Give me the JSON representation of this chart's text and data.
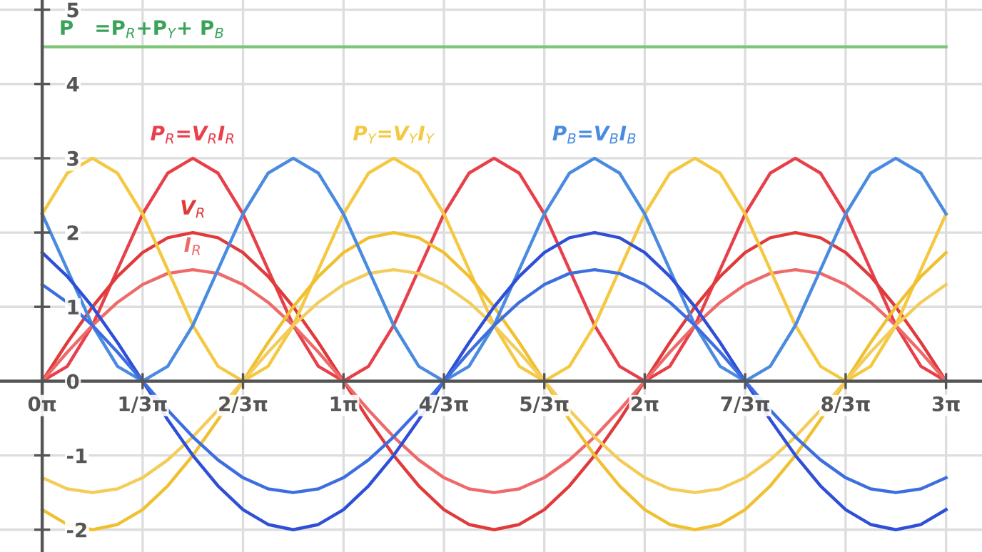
{
  "chart_data": {
    "type": "line",
    "x": [
      0,
      0.262,
      0.524,
      0.785,
      1.047,
      1.309,
      1.571,
      1.833,
      2.094,
      2.356,
      2.618,
      2.88,
      3.142,
      3.403,
      3.665,
      3.927,
      4.189,
      4.451,
      4.712,
      4.974,
      5.236,
      5.498,
      5.76,
      6.021,
      6.283,
      6.545,
      6.807,
      7.069,
      7.33,
      7.592,
      7.854,
      8.116,
      8.378,
      8.639,
      8.901,
      9.163,
      9.425
    ],
    "series": [
      {
        "name": "P$_{R}$=V$_{R}$I$_{R}$",
        "color": "#e8404a",
        "values": [
          0,
          0.2,
          0.75,
          1.5,
          2.25,
          2.8,
          3,
          2.8,
          2.25,
          1.5,
          0.75,
          0.2,
          0,
          0.2,
          0.75,
          1.5,
          2.25,
          2.8,
          3,
          2.8,
          2.25,
          1.5,
          0.75,
          0.2,
          0,
          0.2,
          0.75,
          1.5,
          2.25,
          2.8,
          3,
          2.8,
          2.25,
          1.5,
          0.75,
          0.2,
          0
        ]
      },
      {
        "name": "V$_{R}$",
        "color": "#e03a3a",
        "values": [
          0,
          0.52,
          1,
          1.41,
          1.73,
          1.93,
          2,
          1.93,
          1.73,
          1.41,
          1,
          0.52,
          0,
          -0.52,
          -1,
          -1.41,
          -1.73,
          -1.93,
          -2,
          -1.93,
          -1.73,
          -1.41,
          -1,
          -0.52,
          0,
          0.52,
          1,
          1.41,
          1.73,
          1.93,
          2,
          1.93,
          1.73,
          1.41,
          1,
          0.52,
          0
        ]
      },
      {
        "name": "I$_{R}$",
        "color": "#ee6a6a",
        "values": [
          0,
          0.39,
          0.75,
          1.06,
          1.3,
          1.45,
          1.5,
          1.45,
          1.3,
          1.06,
          0.75,
          0.39,
          0,
          -0.39,
          -0.75,
          -1.06,
          -1.3,
          -1.45,
          -1.5,
          -1.45,
          -1.3,
          -1.06,
          -0.75,
          -0.39,
          0,
          0.39,
          0.75,
          1.06,
          1.3,
          1.45,
          1.5,
          1.45,
          1.3,
          1.06,
          0.75,
          0.39,
          0
        ]
      },
      {
        "name": "P$_{Y}$=V$_{Y}$I$_{Y}$",
        "color": "#f5c842",
        "values": [
          2.25,
          2.8,
          3,
          2.8,
          2.25,
          1.5,
          0.75,
          0.2,
          0,
          0.2,
          0.75,
          1.5,
          2.25,
          2.8,
          3,
          2.8,
          2.25,
          1.5,
          0.75,
          0.2,
          0,
          0.2,
          0.75,
          1.5,
          2.25,
          2.8,
          3,
          2.8,
          2.25,
          1.5,
          0.75,
          0.2,
          0,
          0.2,
          0.75,
          1.5,
          2.25
        ]
      },
      {
        "color": "#f0c030",
        "values": [
          -1.73,
          -1.93,
          -2,
          -1.93,
          -1.73,
          -1.41,
          -1,
          -0.52,
          0,
          0.52,
          1,
          1.41,
          1.73,
          1.93,
          2,
          1.93,
          1.73,
          1.41,
          1,
          0.52,
          0,
          -0.52,
          -1,
          -1.41,
          -1.73,
          -1.93,
          -2,
          -1.93,
          -1.73,
          -1.41,
          -1,
          -0.52,
          0,
          0.52,
          1,
          1.41,
          1.73
        ]
      },
      {
        "color": "#f3cc5a",
        "values": [
          -1.3,
          -1.45,
          -1.5,
          -1.45,
          -1.3,
          -1.06,
          -0.75,
          -0.39,
          0,
          0.39,
          0.75,
          1.06,
          1.3,
          1.45,
          1.5,
          1.45,
          1.3,
          1.06,
          0.75,
          0.39,
          0,
          -0.39,
          -0.75,
          -1.06,
          -1.3,
          -1.45,
          -1.5,
          -1.45,
          -1.3,
          -1.06,
          -0.75,
          -0.39,
          0,
          0.39,
          0.75,
          1.06,
          1.3
        ]
      },
      {
        "name": "P$_{B}$=V$_{B}$I$_{B}$",
        "color": "#4a8be0",
        "values": [
          2.25,
          1.5,
          0.75,
          0.2,
          0,
          0.2,
          0.75,
          1.5,
          2.25,
          2.8,
          3,
          2.8,
          2.25,
          1.5,
          0.75,
          0.2,
          0,
          0.2,
          0.75,
          1.5,
          2.25,
          2.8,
          3,
          2.8,
          2.25,
          1.5,
          0.75,
          0.2,
          0,
          0.2,
          0.75,
          1.5,
          2.25,
          2.8,
          3,
          2.8,
          2.25
        ]
      },
      {
        "color": "#2e4fd6",
        "values": [
          1.73,
          1.41,
          1,
          0.52,
          0,
          -0.52,
          -1,
          -1.41,
          -1.73,
          -1.93,
          -2,
          -1.93,
          -1.73,
          -1.41,
          -1,
          -0.52,
          0,
          0.52,
          1,
          1.41,
          1.73,
          1.93,
          2,
          1.93,
          1.73,
          1.41,
          1,
          0.52,
          0,
          -0.52,
          -1,
          -1.41,
          -1.73,
          -1.93,
          -2,
          -1.93,
          -1.73
        ]
      },
      {
        "color": "#3d6ee0",
        "values": [
          1.3,
          1.06,
          0.75,
          0.39,
          0,
          -0.39,
          -0.75,
          -1.06,
          -1.3,
          -1.45,
          -1.5,
          -1.45,
          -1.3,
          -1.06,
          -0.75,
          -0.39,
          0,
          0.39,
          0.75,
          1.06,
          1.3,
          1.45,
          1.5,
          1.45,
          1.3,
          1.06,
          0.75,
          0.39,
          0,
          -0.39,
          -0.75,
          -1.06,
          -1.3,
          -1.45,
          -1.5,
          -1.45,
          -1.3
        ]
      },
      {
        "color": "#7cc576",
        "x": [
          0,
          9.425
        ],
        "values": [
          4.5,
          4.5
        ]
      }
    ],
    "annotations": [
      {
        "text": "P   =P$_{R}$+P$_{Y}$+ P$_{B}$",
        "x": 1.04,
        "y": 4.5
      }
    ],
    "xlim": [
      -0.44,
      9.8
    ],
    "ylim": [
      -2.3,
      5.13
    ],
    "xticks": [
      {
        "value": 0,
        "label": "0π"
      },
      {
        "value": 1.047,
        "label": "1/3π"
      },
      {
        "value": 2.094,
        "label": "2/3π"
      },
      {
        "value": 3.142,
        "label": "1π"
      },
      {
        "value": 4.189,
        "label": "4/3π"
      },
      {
        "value": 5.236,
        "label": "5/3π"
      },
      {
        "value": 6.283,
        "label": "2π"
      },
      {
        "value": 7.33,
        "label": "7/3π"
      },
      {
        "value": 8.378,
        "label": "8/3π"
      },
      {
        "value": 9.425,
        "label": "3π"
      }
    ],
    "yticks": [
      -2,
      -1,
      0,
      1,
      2,
      3,
      4,
      5
    ],
    "grid": true,
    "legend": false,
    "line_style": "solid",
    "marker": "none"
  }
}
